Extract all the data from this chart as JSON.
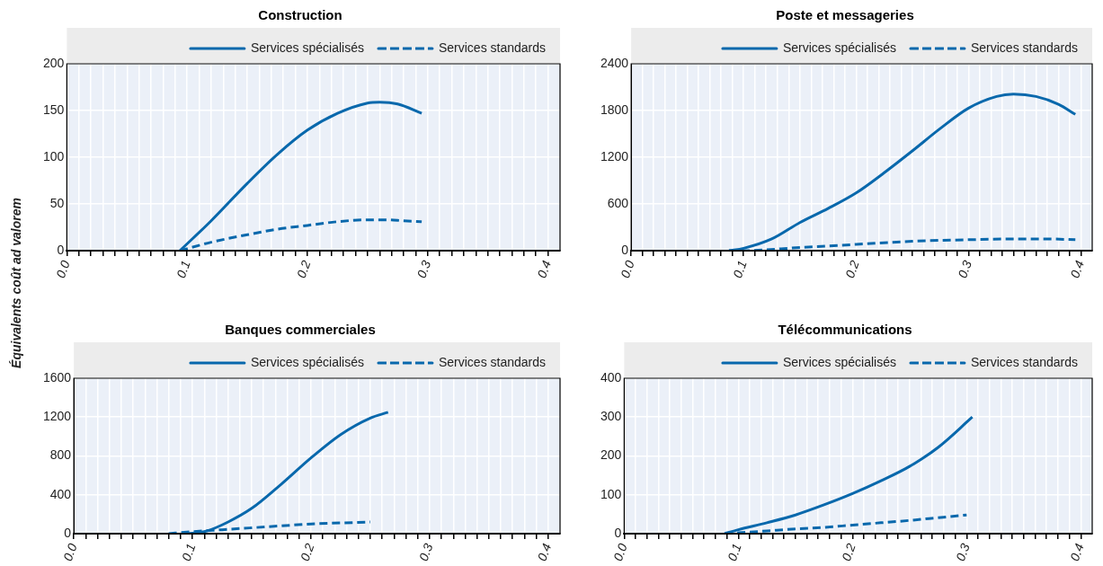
{
  "chart_data": [
    {
      "type": "line",
      "title": "Construction",
      "ylabel": "Équivalents coût ad valorem",
      "legend": "top",
      "grid": true,
      "xlim": [
        0,
        0.41
      ],
      "ylim": [
        0,
        200
      ],
      "yticks": [
        0,
        50,
        100,
        150,
        200
      ],
      "xticks": [
        {
          "value": 0,
          "label": "0.0"
        },
        {
          "value": 0.01,
          "label": null
        },
        {
          "value": 0.02,
          "label": null
        },
        {
          "value": 0.03,
          "label": null
        },
        {
          "value": 0.04,
          "label": null
        },
        {
          "value": 0.05,
          "label": null
        },
        {
          "value": 0.06,
          "label": null
        },
        {
          "value": 0.07,
          "label": null
        },
        {
          "value": 0.08,
          "label": null
        },
        {
          "value": 0.09,
          "label": null
        },
        0.1,
        {
          "value": 0.11,
          "label": null
        },
        {
          "value": 0.12,
          "label": null
        },
        {
          "value": 0.13,
          "label": null
        },
        {
          "value": 0.14,
          "label": null
        },
        {
          "value": 0.15,
          "label": null
        },
        {
          "value": 0.16,
          "label": null
        },
        {
          "value": 0.17,
          "label": null
        },
        {
          "value": 0.18,
          "label": null
        },
        {
          "value": 0.19,
          "label": null
        },
        0.2,
        {
          "value": 0.21,
          "label": null
        },
        {
          "value": 0.22,
          "label": null
        },
        {
          "value": 0.23,
          "label": null
        },
        {
          "value": 0.24,
          "label": null
        },
        {
          "value": 0.25,
          "label": null
        },
        {
          "value": 0.26,
          "label": null
        },
        {
          "value": 0.27,
          "label": null
        },
        {
          "value": 0.28,
          "label": null
        },
        {
          "value": 0.29,
          "label": null
        },
        0.3,
        {
          "value": 0.31,
          "label": null
        },
        {
          "value": 0.32,
          "label": null
        },
        {
          "value": 0.33,
          "label": null
        },
        {
          "value": 0.34,
          "label": null
        },
        {
          "value": 0.35,
          "label": null
        },
        {
          "value": 0.36,
          "label": null
        },
        {
          "value": 0.37,
          "label": null
        },
        {
          "value": 0.38,
          "label": null
        },
        {
          "value": 0.39,
          "label": null
        },
        0.4
      ],
      "series": [
        {
          "name": "Services spécialisés",
          "color": "#0868ac",
          "line_style": "solid",
          "x": [
            0.094,
            0.12,
            0.15,
            0.175,
            0.2,
            0.225,
            0.25,
            0.26,
            0.275,
            0.295
          ],
          "values": [
            0,
            32,
            72,
            103,
            129,
            147,
            158,
            159,
            157,
            147
          ]
        },
        {
          "name": "Services standards",
          "color": "#0868ac",
          "line_style": "dashed",
          "x": [
            0.094,
            0.12,
            0.15,
            0.175,
            0.2,
            0.225,
            0.25,
            0.265,
            0.28,
            0.295
          ],
          "values": [
            0,
            9,
            17,
            23,
            27,
            31,
            33,
            33,
            32,
            31
          ]
        }
      ]
    },
    {
      "type": "line",
      "title": "Poste et messageries",
      "legend": "top",
      "grid": true,
      "xlim": [
        0,
        0.41
      ],
      "ylim": [
        0,
        2400
      ],
      "yticks": [
        0,
        600,
        1200,
        1800,
        2400
      ],
      "xticks": [
        {
          "value": 0,
          "label": "0.0"
        },
        {
          "value": 0.01,
          "label": null
        },
        {
          "value": 0.02,
          "label": null
        },
        {
          "value": 0.03,
          "label": null
        },
        {
          "value": 0.04,
          "label": null
        },
        {
          "value": 0.05,
          "label": null
        },
        {
          "value": 0.06,
          "label": null
        },
        {
          "value": 0.07,
          "label": null
        },
        {
          "value": 0.08,
          "label": null
        },
        {
          "value": 0.09,
          "label": null
        },
        0.1,
        {
          "value": 0.11,
          "label": null
        },
        {
          "value": 0.12,
          "label": null
        },
        {
          "value": 0.13,
          "label": null
        },
        {
          "value": 0.14,
          "label": null
        },
        {
          "value": 0.15,
          "label": null
        },
        {
          "value": 0.16,
          "label": null
        },
        {
          "value": 0.17,
          "label": null
        },
        {
          "value": 0.18,
          "label": null
        },
        {
          "value": 0.19,
          "label": null
        },
        0.2,
        {
          "value": 0.21,
          "label": null
        },
        {
          "value": 0.22,
          "label": null
        },
        {
          "value": 0.23,
          "label": null
        },
        {
          "value": 0.24,
          "label": null
        },
        {
          "value": 0.25,
          "label": null
        },
        {
          "value": 0.26,
          "label": null
        },
        {
          "value": 0.27,
          "label": null
        },
        {
          "value": 0.28,
          "label": null
        },
        {
          "value": 0.29,
          "label": null
        },
        0.3,
        {
          "value": 0.31,
          "label": null
        },
        {
          "value": 0.32,
          "label": null
        },
        {
          "value": 0.33,
          "label": null
        },
        {
          "value": 0.34,
          "label": null
        },
        {
          "value": 0.35,
          "label": null
        },
        {
          "value": 0.36,
          "label": null
        },
        {
          "value": 0.37,
          "label": null
        },
        {
          "value": 0.38,
          "label": null
        },
        {
          "value": 0.39,
          "label": null
        },
        0.4
      ],
      "series": [
        {
          "name": "Services spécialisés",
          "color": "#0868ac",
          "line_style": "solid",
          "x": [
            0.087,
            0.1,
            0.125,
            0.15,
            0.175,
            0.2,
            0.225,
            0.25,
            0.275,
            0.3,
            0.325,
            0.34,
            0.36,
            0.38,
            0.395
          ],
          "values": [
            0,
            30,
            150,
            360,
            540,
            740,
            1000,
            1280,
            1570,
            1830,
            1980,
            2010,
            1980,
            1880,
            1750
          ]
        },
        {
          "name": "Services standards",
          "color": "#0868ac",
          "line_style": "dashed",
          "x": [
            0.087,
            0.1,
            0.15,
            0.2,
            0.25,
            0.3,
            0.34,
            0.37,
            0.395
          ],
          "values": [
            0,
            0,
            40,
            80,
            120,
            140,
            150,
            150,
            140
          ]
        }
      ]
    },
    {
      "type": "line",
      "title": "Banques commerciales",
      "legend": "top",
      "grid": true,
      "xlim": [
        0,
        0.41
      ],
      "ylim": [
        0,
        1600
      ],
      "yticks": [
        0,
        400,
        800,
        1200,
        1600
      ],
      "xticks": [
        {
          "value": 0,
          "label": "0.0"
        },
        {
          "value": 0.01,
          "label": null
        },
        {
          "value": 0.02,
          "label": null
        },
        {
          "value": 0.03,
          "label": null
        },
        {
          "value": 0.04,
          "label": null
        },
        {
          "value": 0.05,
          "label": null
        },
        {
          "value": 0.06,
          "label": null
        },
        {
          "value": 0.07,
          "label": null
        },
        {
          "value": 0.08,
          "label": null
        },
        {
          "value": 0.09,
          "label": null
        },
        0.1,
        {
          "value": 0.11,
          "label": null
        },
        {
          "value": 0.12,
          "label": null
        },
        {
          "value": 0.13,
          "label": null
        },
        {
          "value": 0.14,
          "label": null
        },
        {
          "value": 0.15,
          "label": null
        },
        {
          "value": 0.16,
          "label": null
        },
        {
          "value": 0.17,
          "label": null
        },
        {
          "value": 0.18,
          "label": null
        },
        {
          "value": 0.19,
          "label": null
        },
        0.2,
        {
          "value": 0.21,
          "label": null
        },
        {
          "value": 0.22,
          "label": null
        },
        {
          "value": 0.23,
          "label": null
        },
        {
          "value": 0.24,
          "label": null
        },
        {
          "value": 0.25,
          "label": null
        },
        {
          "value": 0.26,
          "label": null
        },
        {
          "value": 0.27,
          "label": null
        },
        {
          "value": 0.28,
          "label": null
        },
        {
          "value": 0.29,
          "label": null
        },
        0.3,
        {
          "value": 0.31,
          "label": null
        },
        {
          "value": 0.32,
          "label": null
        },
        {
          "value": 0.33,
          "label": null
        },
        {
          "value": 0.34,
          "label": null
        },
        {
          "value": 0.35,
          "label": null
        },
        {
          "value": 0.36,
          "label": null
        },
        {
          "value": 0.37,
          "label": null
        },
        {
          "value": 0.38,
          "label": null
        },
        {
          "value": 0.39,
          "label": null
        },
        0.4
      ],
      "series": [
        {
          "name": "Services spécialisés",
          "color": "#0868ac",
          "line_style": "solid",
          "x": [
            0.095,
            0.11,
            0.125,
            0.15,
            0.175,
            0.2,
            0.225,
            0.25,
            0.265
          ],
          "values": [
            0,
            20,
            90,
            260,
            510,
            780,
            1020,
            1190,
            1250
          ]
        },
        {
          "name": "Services standards",
          "color": "#0868ac",
          "line_style": "dashed",
          "x": [
            0.08,
            0.1,
            0.125,
            0.15,
            0.175,
            0.2,
            0.225,
            0.25
          ],
          "values": [
            0,
            20,
            40,
            60,
            80,
            100,
            110,
            120
          ]
        }
      ]
    },
    {
      "type": "line",
      "title": "Télécommunications",
      "legend": "top",
      "grid": true,
      "xlim": [
        0,
        0.41
      ],
      "ylim": [
        0,
        400
      ],
      "yticks": [
        0,
        100,
        200,
        300,
        400
      ],
      "xticks": [
        {
          "value": 0,
          "label": "0.0"
        },
        {
          "value": 0.01,
          "label": null
        },
        {
          "value": 0.02,
          "label": null
        },
        {
          "value": 0.03,
          "label": null
        },
        {
          "value": 0.04,
          "label": null
        },
        {
          "value": 0.05,
          "label": null
        },
        {
          "value": 0.06,
          "label": null
        },
        {
          "value": 0.07,
          "label": null
        },
        {
          "value": 0.08,
          "label": null
        },
        {
          "value": 0.09,
          "label": null
        },
        0.1,
        {
          "value": 0.11,
          "label": null
        },
        {
          "value": 0.12,
          "label": null
        },
        {
          "value": 0.13,
          "label": null
        },
        {
          "value": 0.14,
          "label": null
        },
        {
          "value": 0.15,
          "label": null
        },
        {
          "value": 0.16,
          "label": null
        },
        {
          "value": 0.17,
          "label": null
        },
        {
          "value": 0.18,
          "label": null
        },
        {
          "value": 0.19,
          "label": null
        },
        0.2,
        {
          "value": 0.21,
          "label": null
        },
        {
          "value": 0.22,
          "label": null
        },
        {
          "value": 0.23,
          "label": null
        },
        {
          "value": 0.24,
          "label": null
        },
        {
          "value": 0.25,
          "label": null
        },
        {
          "value": 0.26,
          "label": null
        },
        {
          "value": 0.27,
          "label": null
        },
        {
          "value": 0.28,
          "label": null
        },
        {
          "value": 0.29,
          "label": null
        },
        0.3,
        {
          "value": 0.31,
          "label": null
        },
        {
          "value": 0.32,
          "label": null
        },
        {
          "value": 0.33,
          "label": null
        },
        {
          "value": 0.34,
          "label": null
        },
        {
          "value": 0.35,
          "label": null
        },
        {
          "value": 0.36,
          "label": null
        },
        {
          "value": 0.37,
          "label": null
        },
        {
          "value": 0.38,
          "label": null
        },
        {
          "value": 0.39,
          "label": null
        },
        0.4
      ],
      "series": [
        {
          "name": "Services spécialisés",
          "color": "#0868ac",
          "line_style": "solid",
          "x": [
            0.088,
            0.1,
            0.125,
            0.15,
            0.175,
            0.2,
            0.225,
            0.25,
            0.275,
            0.305
          ],
          "values": [
            0,
            10,
            28,
            48,
            74,
            103,
            136,
            173,
            222,
            300
          ]
        },
        {
          "name": "Services standards",
          "color": "#0868ac",
          "line_style": "dashed",
          "x": [
            0.088,
            0.1,
            0.125,
            0.15,
            0.175,
            0.2,
            0.225,
            0.25,
            0.275,
            0.3
          ],
          "values": [
            0,
            2,
            7,
            12,
            16,
            22,
            28,
            34,
            41,
            48
          ]
        }
      ]
    }
  ]
}
